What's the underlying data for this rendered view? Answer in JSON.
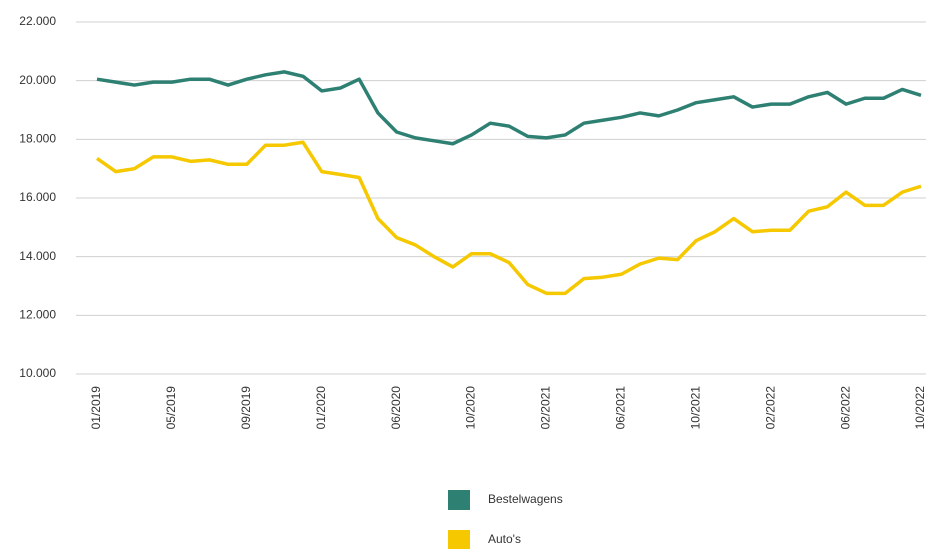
{
  "chart_data": {
    "type": "line",
    "categories": [
      "01/2019",
      null,
      null,
      null,
      "05/2019",
      null,
      null,
      null,
      "09/2019",
      null,
      null,
      null,
      "01/2020",
      null,
      null,
      null,
      "06/2020",
      null,
      null,
      null,
      "10/2020",
      null,
      null,
      null,
      "02/2021",
      null,
      null,
      null,
      "06/2021",
      null,
      null,
      null,
      "10/2021",
      null,
      null,
      null,
      "02/2022",
      null,
      null,
      null,
      "06/2022",
      null,
      null,
      null,
      "10/2022"
    ],
    "series": [
      {
        "name": "Bestelwagens",
        "color": "#2e8073",
        "values": [
          20050,
          19950,
          19850,
          19950,
          19950,
          20050,
          20050,
          19850,
          20050,
          20200,
          20300,
          20150,
          19650,
          19750,
          20050,
          18900,
          18250,
          18050,
          17950,
          17850,
          18150,
          18550,
          18450,
          18100,
          18050,
          18150,
          18550,
          18650,
          18750,
          18900,
          18800,
          19000,
          19250,
          19350,
          19450,
          19100,
          19200,
          19200,
          19450,
          19600,
          19200,
          19400,
          19400,
          19700,
          19500
        ]
      },
      {
        "name": "Auto's",
        "color": "#f5c800",
        "values": [
          17350,
          16900,
          17000,
          17400,
          17400,
          17250,
          17300,
          17150,
          17150,
          17800,
          17800,
          17900,
          16900,
          16800,
          16700,
          15300,
          14650,
          14400,
          14000,
          13650,
          14100,
          14100,
          13800,
          13050,
          12750,
          12750,
          13250,
          13300,
          13400,
          13750,
          13950,
          13900,
          14550,
          14850,
          15300,
          14850,
          14900,
          14900,
          15550,
          15700,
          16200,
          15750,
          15750,
          16200,
          16400
        ]
      }
    ],
    "ylim": [
      10000,
      22000
    ],
    "yticks": [
      {
        "value": 10000,
        "label": "10.000"
      },
      {
        "value": 12000,
        "label": "12.000"
      },
      {
        "value": 14000,
        "label": "14.000"
      },
      {
        "value": 16000,
        "label": "16.000"
      },
      {
        "value": 18000,
        "label": "18.000"
      },
      {
        "value": 20000,
        "label": "20.000"
      },
      {
        "value": 22000,
        "label": "22.000"
      }
    ],
    "grid": true
  }
}
